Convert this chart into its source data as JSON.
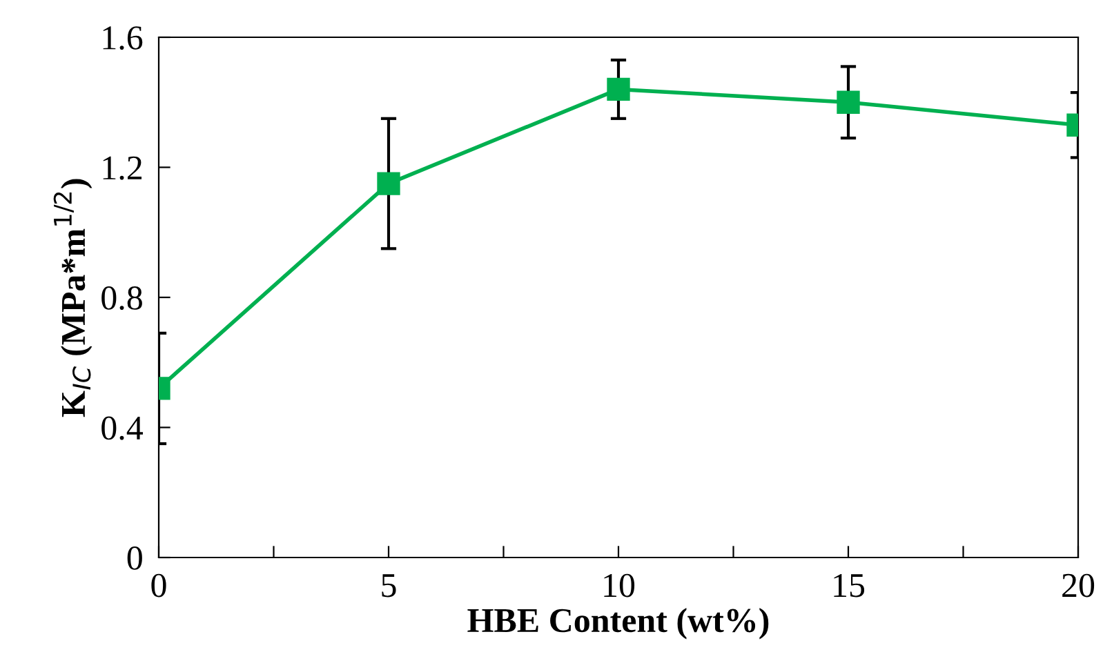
{
  "chart_data": {
    "type": "line",
    "xlabel": "HBE Content (wt%)",
    "ylabel": "K$_{IC}$ (MPa*m$^{1/2}$)",
    "x": [
      0,
      5,
      10,
      15,
      20
    ],
    "series": [
      {
        "color": "#00b050",
        "values": [
          0.52,
          1.15,
          1.44,
          1.4,
          1.33
        ],
        "errors": [
          0.17,
          0.2,
          0.09,
          0.11,
          0.1
        ]
      }
    ],
    "marker": "square",
    "line_style": "solid",
    "grid": false,
    "legend": false,
    "xlim": [
      0,
      20
    ],
    "xticks": [
      0,
      {
        "value": 2.5,
        "label": null
      },
      5,
      {
        "value": 7.5,
        "label": null
      },
      10,
      {
        "value": 12.5,
        "label": null
      },
      15,
      {
        "value": 17.5,
        "label": null
      },
      20
    ],
    "ylim": [
      0,
      1.6
    ],
    "yticks": [
      0,
      0.4,
      0.8,
      1.2,
      1.6
    ]
  }
}
